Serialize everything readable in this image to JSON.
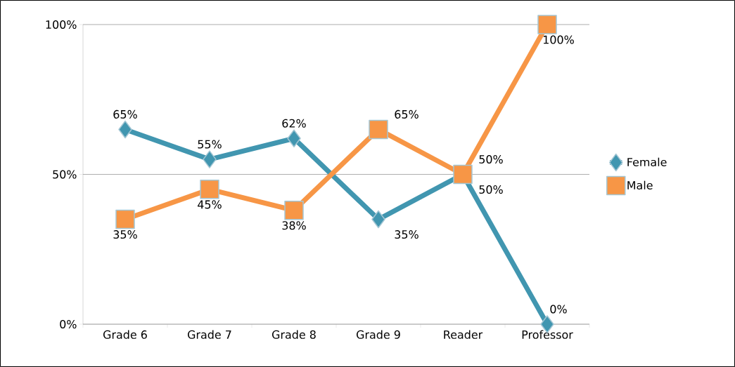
{
  "chart_data": {
    "type": "line",
    "categories": [
      "Grade 6",
      "Grade 7",
      "Grade 8",
      "Grade 9",
      "Reader",
      "Professor"
    ],
    "series": [
      {
        "name": "Female",
        "color": "#4196b0",
        "marker": "diamond",
        "values": [
          65,
          55,
          62,
          35,
          50,
          0
        ],
        "value_labels": [
          "65%",
          "55%",
          "62%",
          "35%",
          "50%",
          "0%"
        ]
      },
      {
        "name": "Male",
        "color": "#f79646",
        "marker": "square",
        "values": [
          35,
          45,
          38,
          65,
          50,
          100
        ],
        "value_labels": [
          "35%",
          "45%",
          "38%",
          "65%",
          "50%",
          "100%"
        ]
      }
    ],
    "ylim": [
      0,
      100
    ],
    "yticks": [
      {
        "value": 0,
        "label": "0%"
      },
      {
        "value": 50,
        "label": "50%"
      },
      {
        "value": 100,
        "label": "100%"
      }
    ],
    "grid": "y",
    "legend": "right"
  }
}
